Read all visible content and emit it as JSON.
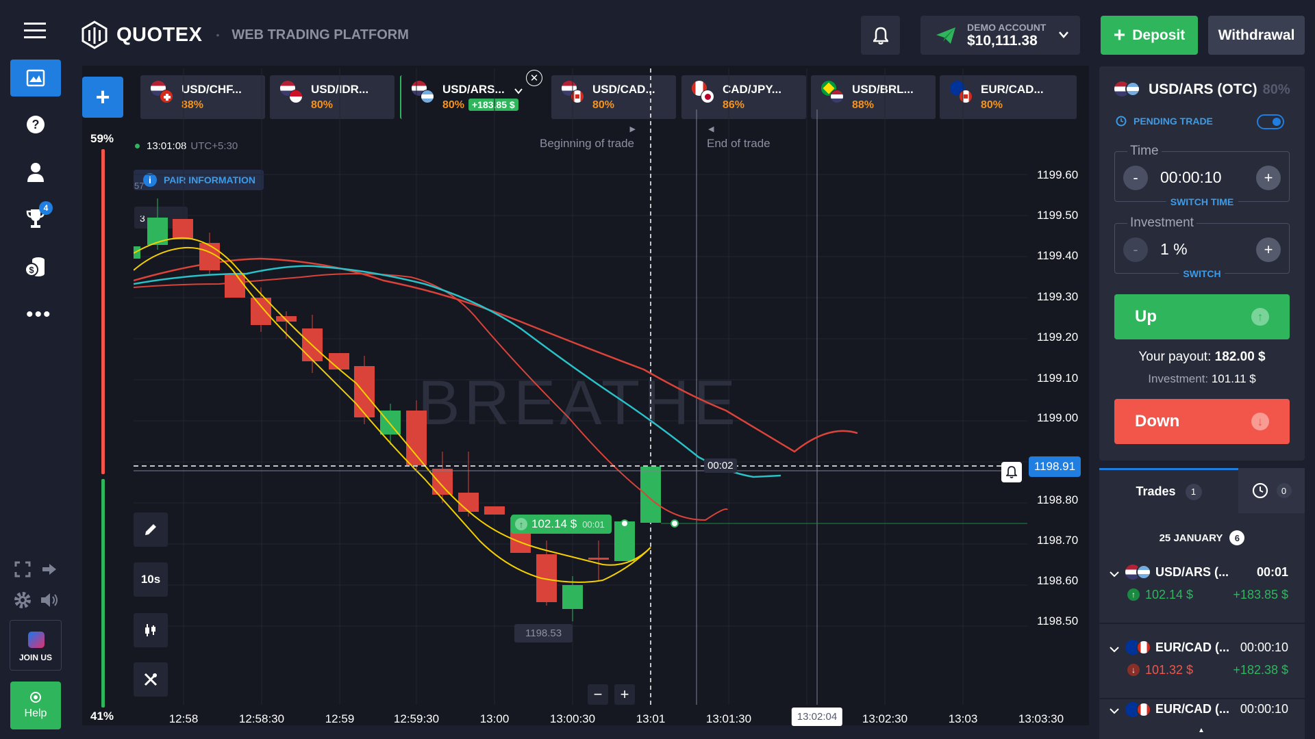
{
  "brand": {
    "name": "QUOTEX",
    "subtitle": "WEB TRADING PLATFORM"
  },
  "nav": {
    "trophy_badge": "4",
    "join_us": "JOIN US",
    "help": "Help"
  },
  "header": {
    "account_type": "DEMO ACCOUNT",
    "balance": "$10,111.38",
    "deposit": "Deposit",
    "withdrawal": "Withdrawal"
  },
  "tabs": [
    {
      "name": "USD/CHF...",
      "pct": "88%"
    },
    {
      "name": "USD/IDR...",
      "pct": "80%"
    },
    {
      "name": "USD/ARS...",
      "pct": "80%",
      "profit": "+183.85 $"
    },
    {
      "name": "USD/CAD...",
      "pct": "80%"
    },
    {
      "name": "CAD/JPY...",
      "pct": "86%"
    },
    {
      "name": "USD/BRL...",
      "pct": "88%"
    },
    {
      "name": "EUR/CAD...",
      "pct": "80%"
    }
  ],
  "chart": {
    "sentiment_top": "59%",
    "sentiment_bottom": "41%",
    "clock": "13:01:08",
    "timezone": "UTC+5:30",
    "pair_info": "PAIR INFORMATION",
    "begin_label": "Beginning of trade",
    "end_label": "End of trade",
    "watermark": "BREATHE",
    "countdown": "00:02",
    "current_price": "1198.91",
    "trade_amount": "102.14 $",
    "trade_timer": "00:01",
    "low_label": "1198.53",
    "timeframe": "10s",
    "crosshair_time": "13:02:04",
    "prices": [
      "1199.60",
      "1199.50",
      "1199.40",
      "1199.30",
      "1199.20",
      "1199.10",
      "1199.00",
      "1198.80",
      "1198.70",
      "1198.60",
      "1198.50"
    ],
    "times": [
      "12:58",
      "12:58:30",
      "12:59",
      "12:59:30",
      "13:00",
      "13:00:30",
      "13:01",
      "13:01:30",
      "13:02:30",
      "13:03",
      "13:03:30"
    ],
    "small_left_a": "57",
    "small_left_b": "3"
  },
  "panel": {
    "pair": "USD/ARS (OTC)",
    "pair_pct": "80%",
    "pending": "PENDING TRADE",
    "time_label": "Time",
    "time_value": "00:00:10",
    "switch_time": "SWITCH TIME",
    "investment_label": "Investment",
    "investment_value": "1 %",
    "switch": "SWITCH",
    "up": "Up",
    "down": "Down",
    "payout_label": "Your payout:",
    "payout_value": "182.00 $",
    "investment_line_label": "Investment:",
    "investment_line_value": "101.11 $"
  },
  "trades": {
    "tab_label": "Trades",
    "tab_count": "1",
    "pending_count": "0",
    "date": "25 JANUARY",
    "date_count": "6",
    "items": [
      {
        "pair": "USD/ARS (...",
        "time": "00:01",
        "amount": "102.14 $",
        "profit": "+183.85 $",
        "dir": "up"
      },
      {
        "pair": "EUR/CAD (...",
        "time": "00:00:10",
        "amount": "101.32 $",
        "profit": "+182.38 $",
        "dir": "down"
      },
      {
        "pair": "EUR/CAD (...",
        "time": "00:00:10"
      }
    ]
  },
  "colors": {
    "green": "#2fb65d",
    "red": "#f2564a",
    "blue": "#1f7ee0",
    "orange": "#f7931a"
  }
}
